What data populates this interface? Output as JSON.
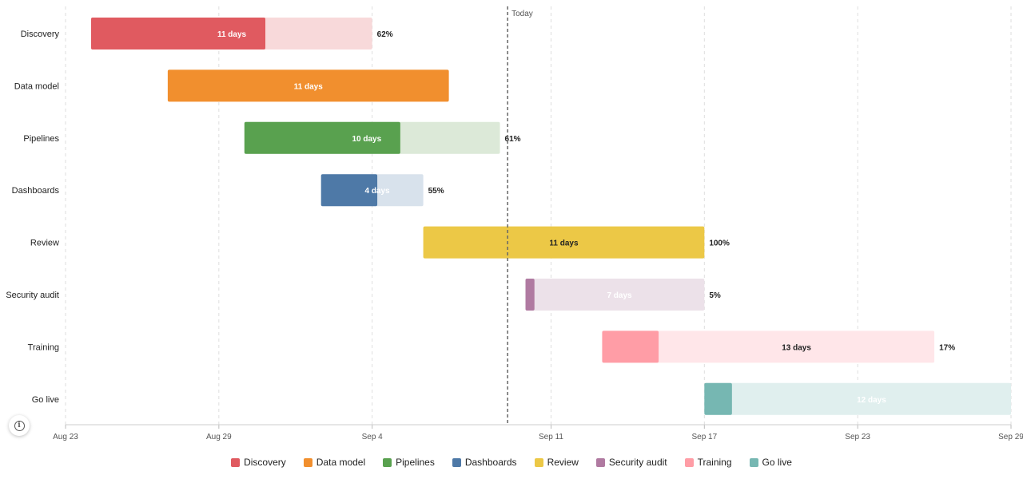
{
  "chart_data": {
    "type": "gantt",
    "today": {
      "label": "Today",
      "date": "2024-09-09"
    },
    "x_ticks": [
      {
        "label": "Aug 23",
        "date": "2024-08-23"
      },
      {
        "label": "Aug 29",
        "date": "2024-08-29"
      },
      {
        "label": "Sep 4",
        "date": "2024-09-04"
      },
      {
        "label": "Sep 11",
        "date": "2024-09-11"
      },
      {
        "label": "Sep 17",
        "date": "2024-09-17"
      },
      {
        "label": "Sep 23",
        "date": "2024-09-23"
      },
      {
        "label": "Sep 29",
        "date": "2024-09-29"
      }
    ],
    "xlim": [
      "2024-08-23",
      "2024-09-29"
    ],
    "grid": true,
    "legend_position": "bottom",
    "tasks": [
      {
        "name": "Discovery",
        "start": "2024-08-24",
        "end": "2024-09-04",
        "duration_label": "11 days",
        "progress": 0.62,
        "progress_label": "62%",
        "color": "#e05a60",
        "light": "#f8d9da",
        "text_color": "#ffffff"
      },
      {
        "name": "Data model",
        "start": "2024-08-27",
        "end": "2024-09-07",
        "duration_label": "11 days",
        "progress": 1.0,
        "progress_label": "",
        "color": "#f18f2e",
        "light": "#fce3cb",
        "text_color": "#ffffff"
      },
      {
        "name": "Pipelines",
        "start": "2024-08-30",
        "end": "2024-09-09",
        "duration_label": "10 days",
        "progress": 0.61,
        "progress_label": "61%",
        "color": "#59a14f",
        "light": "#dce9d8",
        "text_color": "#ffffff"
      },
      {
        "name": "Dashboards",
        "start": "2024-09-02",
        "end": "2024-09-06",
        "duration_label": "4 days",
        "progress": 0.55,
        "progress_label": "55%",
        "color": "#4e79a7",
        "light": "#d8e2ec",
        "text_color": "#ffffff"
      },
      {
        "name": "Review",
        "start": "2024-09-06",
        "end": "2024-09-17",
        "duration_label": "11 days",
        "progress": 1.0,
        "progress_label": "100%",
        "color": "#ecc846",
        "light": "#faf1cf",
        "text_color": "#222222"
      },
      {
        "name": "Security audit",
        "start": "2024-09-10",
        "end": "2024-09-17",
        "duration_label": "7 days",
        "progress": 0.05,
        "progress_label": "5%",
        "color": "#b07aa1",
        "light": "#ece1e9",
        "text_color": "#ffffff"
      },
      {
        "name": "Training",
        "start": "2024-09-13",
        "end": "2024-09-26",
        "duration_label": "13 days",
        "progress": 0.17,
        "progress_label": "17%",
        "color": "#ff9da6",
        "light": "#ffe6e9",
        "text_color": "#222222"
      },
      {
        "name": "Go live",
        "start": "2024-09-17",
        "end": "2024-09-29",
        "duration_label": "12 days",
        "progress": 0.09,
        "progress_label": "",
        "color": "#76b7b2",
        "light": "#e0efee",
        "text_color": "#ffffff"
      }
    ],
    "legend": [
      {
        "label": "Discovery",
        "color": "#e05a60"
      },
      {
        "label": "Data model",
        "color": "#f18f2e"
      },
      {
        "label": "Pipelines",
        "color": "#59a14f"
      },
      {
        "label": "Dashboards",
        "color": "#4e79a7"
      },
      {
        "label": "Review",
        "color": "#ecc846"
      },
      {
        "label": "Security audit",
        "color": "#b07aa1"
      },
      {
        "label": "Training",
        "color": "#ff9da6"
      },
      {
        "label": "Go live",
        "color": "#76b7b2"
      }
    ]
  },
  "info_icon": "info-icon"
}
